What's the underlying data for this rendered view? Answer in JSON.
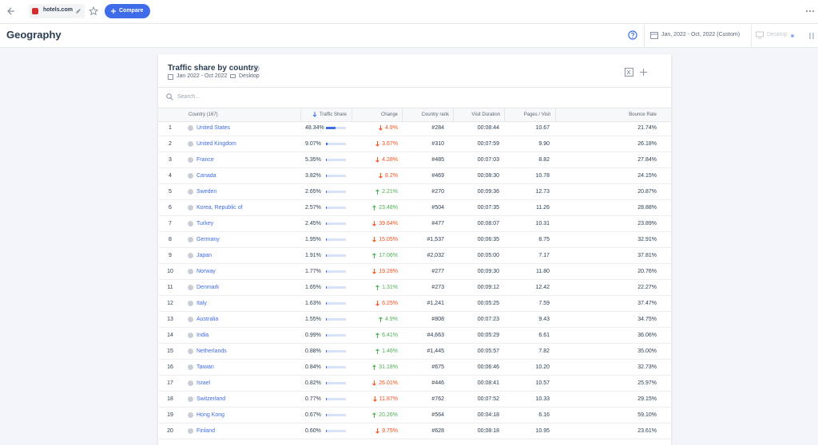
{
  "topbar": {
    "site": "hotels.com",
    "compare": "Compare"
  },
  "header": {
    "title": "Geography",
    "date_range": "Jan, 2022 - Oct, 2022 (Custom)",
    "device": "Desktop"
  },
  "card": {
    "title": "Traffic share by country",
    "date_range": "Jan 2022 - Oct 2022",
    "device": "Desktop",
    "search_placeholder": "Search...",
    "columns": {
      "country": "Country (167)",
      "share": "Traffic Share",
      "change": "Change",
      "country_rank": "Country rank",
      "duration": "Visit Duration",
      "pages": "Pages / Visit",
      "bounce": "Bounce Rate"
    },
    "rows": [
      {
        "rank": "1",
        "country": "United States",
        "share": "48.34%",
        "change": "4.9%",
        "direction": "down",
        "country_rank": "#284",
        "duration": "00:08:44",
        "pages": "10.67",
        "bounce": "21.74%"
      },
      {
        "rank": "2",
        "country": "United Kingdom",
        "share": "9.07%",
        "change": "3.67%",
        "direction": "down",
        "country_rank": "#310",
        "duration": "00:07:59",
        "pages": "9.90",
        "bounce": "26.18%"
      },
      {
        "rank": "3",
        "country": "France",
        "share": "5.35%",
        "change": "4.28%",
        "direction": "down",
        "country_rank": "#485",
        "duration": "00:07:03",
        "pages": "8.82",
        "bounce": "27.84%"
      },
      {
        "rank": "4",
        "country": "Canada",
        "share": "3.82%",
        "change": "8.2%",
        "direction": "down",
        "country_rank": "#469",
        "duration": "00:08:30",
        "pages": "10.78",
        "bounce": "24.15%"
      },
      {
        "rank": "5",
        "country": "Sweden",
        "share": "2.65%",
        "change": "2.21%",
        "direction": "up",
        "country_rank": "#270",
        "duration": "00:09:36",
        "pages": "12.73",
        "bounce": "20.87%"
      },
      {
        "rank": "6",
        "country": "Korea, Republic of",
        "share": "2.57%",
        "change": "23.48%",
        "direction": "up",
        "country_rank": "#504",
        "duration": "00:07:35",
        "pages": "11.26",
        "bounce": "28.88%"
      },
      {
        "rank": "7",
        "country": "Turkey",
        "share": "2.45%",
        "change": "39.64%",
        "direction": "down",
        "country_rank": "#477",
        "duration": "00:08:07",
        "pages": "10.31",
        "bounce": "23.89%"
      },
      {
        "rank": "8",
        "country": "Germany",
        "share": "1.95%",
        "change": "15.05%",
        "direction": "down",
        "country_rank": "#1,537",
        "duration": "00:06:35",
        "pages": "8.75",
        "bounce": "32.91%"
      },
      {
        "rank": "9",
        "country": "Japan",
        "share": "1.91%",
        "change": "17.06%",
        "direction": "up",
        "country_rank": "#2,032",
        "duration": "00:05:00",
        "pages": "7.17",
        "bounce": "37.81%"
      },
      {
        "rank": "10",
        "country": "Norway",
        "share": "1.77%",
        "change": "19.28%",
        "direction": "down",
        "country_rank": "#277",
        "duration": "00:09:30",
        "pages": "11.80",
        "bounce": "20.76%"
      },
      {
        "rank": "11",
        "country": "Denmark",
        "share": "1.65%",
        "change": "1.31%",
        "direction": "up",
        "country_rank": "#273",
        "duration": "00:09:12",
        "pages": "12.42",
        "bounce": "22.27%"
      },
      {
        "rank": "12",
        "country": "Italy",
        "share": "1.63%",
        "change": "6.25%",
        "direction": "down",
        "country_rank": "#1,241",
        "duration": "00:05:25",
        "pages": "7.59",
        "bounce": "37.47%"
      },
      {
        "rank": "13",
        "country": "Australia",
        "share": "1.55%",
        "change": "4.9%",
        "direction": "up",
        "country_rank": "#808",
        "duration": "00:07:23",
        "pages": "9.43",
        "bounce": "34.75%"
      },
      {
        "rank": "14",
        "country": "India",
        "share": "0.99%",
        "change": "6.41%",
        "direction": "up",
        "country_rank": "#4,663",
        "duration": "00:05:29",
        "pages": "6.61",
        "bounce": "36.06%"
      },
      {
        "rank": "15",
        "country": "Netherlands",
        "share": "0.88%",
        "change": "1.46%",
        "direction": "up",
        "country_rank": "#1,445",
        "duration": "00:05:57",
        "pages": "7.82",
        "bounce": "35.00%"
      },
      {
        "rank": "16",
        "country": "Taiwan",
        "share": "0.84%",
        "change": "31.18%",
        "direction": "up",
        "country_rank": "#675",
        "duration": "00:06:46",
        "pages": "10.20",
        "bounce": "32.73%"
      },
      {
        "rank": "17",
        "country": "Israel",
        "share": "0.82%",
        "change": "26.01%",
        "direction": "down",
        "country_rank": "#446",
        "duration": "00:08:41",
        "pages": "10.57",
        "bounce": "25.97%"
      },
      {
        "rank": "18",
        "country": "Switzerland",
        "share": "0.77%",
        "change": "11.87%",
        "direction": "down",
        "country_rank": "#762",
        "duration": "00:07:52",
        "pages": "10.33",
        "bounce": "29.15%"
      },
      {
        "rank": "19",
        "country": "Hong Kong",
        "share": "0.67%",
        "change": "20.26%",
        "direction": "up",
        "country_rank": "#564",
        "duration": "00:04:18",
        "pages": "6.16",
        "bounce": "59.10%"
      },
      {
        "rank": "20",
        "country": "Finland",
        "share": "0.60%",
        "change": "9.75%",
        "direction": "down",
        "country_rank": "#628",
        "duration": "00:08:18",
        "pages": "10.95",
        "bounce": "23.61%"
      }
    ]
  }
}
